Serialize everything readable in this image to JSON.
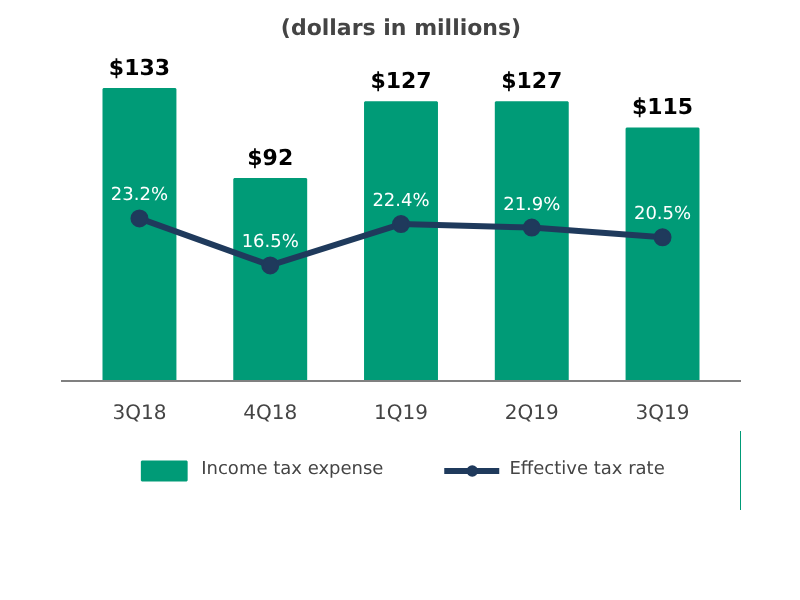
{
  "chart_data": {
    "type": "bar",
    "title": "(dollars in millions)",
    "categories": [
      "3Q18",
      "4Q18",
      "1Q19",
      "2Q19",
      "3Q19"
    ],
    "series": [
      {
        "name": "Income tax expense",
        "color": "#009b77",
        "values": [
          133,
          92,
          127,
          127,
          115
        ],
        "value_labels": [
          "$133",
          "$92",
          "$127",
          "$127",
          "$115"
        ]
      },
      {
        "name": "Effective tax rate",
        "type": "line",
        "axis": "y2",
        "color": "#1f3a5c",
        "marker": "circle",
        "values": [
          23.2,
          16.5,
          22.4,
          21.9,
          20.5
        ],
        "value_labels": [
          "23.2%",
          "16.5%",
          "22.4%",
          "21.9%",
          "20.5%"
        ]
      }
    ],
    "tick_labels": "x",
    "grid": false,
    "legend": "bottom"
  }
}
